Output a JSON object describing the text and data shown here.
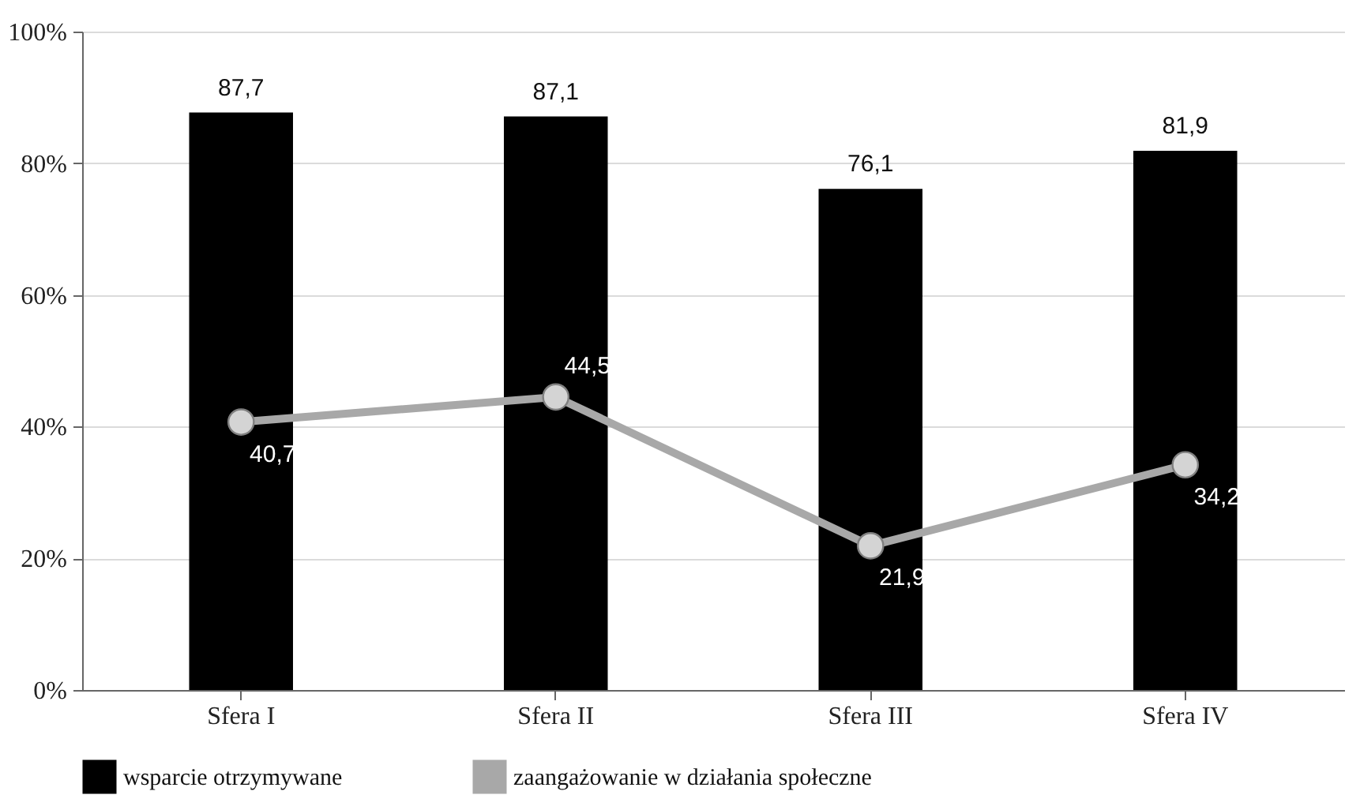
{
  "chart_data": {
    "type": "bar",
    "categories": [
      "Sfera I",
      "Sfera II",
      "Sfera III",
      "Sfera IV"
    ],
    "series": [
      {
        "name": "wsparcie otrzymywane",
        "color": "#000000",
        "values": [
          87.7,
          87.1,
          76.1,
          81.9
        ],
        "value_labels": [
          "87,7",
          "87,1",
          "76,1",
          "81,9"
        ]
      },
      {
        "name": "zaangażowanie w działania społeczne",
        "type": "line",
        "color": "#a8a8a8",
        "values": [
          40.7,
          44.5,
          21.9,
          34.2
        ],
        "value_labels": [
          "40,7",
          "44,5",
          "21,9",
          "34,2"
        ],
        "marker": "circle"
      }
    ],
    "ylim": [
      0,
      100
    ],
    "yticks": [
      {
        "value": 0,
        "label": "0%"
      },
      {
        "value": 20,
        "label": "20%"
      },
      {
        "value": 40,
        "label": "40%"
      },
      {
        "value": 60,
        "label": "60%"
      },
      {
        "value": 80,
        "label": "80%"
      },
      {
        "value": 100,
        "label": "100%"
      }
    ],
    "grid": "y",
    "legend": "bottom"
  }
}
